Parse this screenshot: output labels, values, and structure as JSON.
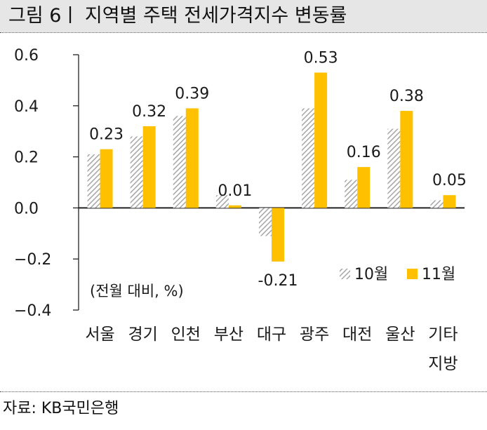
{
  "title": "그림 6ㅣ 지역별 주택 전세가격지수 변동률",
  "source": "자료: KB국민은행",
  "colors": {
    "series_10": "#b8b8b8",
    "series_11": "#ffc000",
    "axis": "#222222"
  },
  "chart_data": {
    "type": "bar",
    "categories": [
      "서울",
      "경기",
      "인천",
      "부산",
      "대구",
      "광주",
      "대전",
      "울산",
      "기타 지방"
    ],
    "category_lines": [
      [
        "서울"
      ],
      [
        "경기"
      ],
      [
        "인천"
      ],
      [
        "부산"
      ],
      [
        "대구"
      ],
      [
        "광주"
      ],
      [
        "대전"
      ],
      [
        "울산"
      ],
      [
        "기타",
        "지방"
      ]
    ],
    "series": [
      {
        "name": "10월",
        "values": [
          0.21,
          0.28,
          0.36,
          0.05,
          -0.11,
          0.39,
          0.11,
          0.31,
          0.03
        ],
        "pattern": "hatch"
      },
      {
        "name": "11월",
        "values": [
          0.23,
          0.32,
          0.39,
          0.01,
          -0.21,
          0.53,
          0.16,
          0.38,
          0.05
        ],
        "pattern": "solid"
      }
    ],
    "data_labels": [
      "0.23",
      "0.32",
      "0.39",
      "0.01",
      "-0.21",
      "0.53",
      "0.16",
      "0.38",
      "0.05"
    ],
    "ylim": [
      -0.4,
      0.6
    ],
    "yticks": [
      0.6,
      0.4,
      0.2,
      0.0,
      -0.2,
      -0.4
    ],
    "ytick_labels": [
      "0.6",
      "0.4",
      "0.2",
      "0.0",
      "−0.2",
      "−0.4"
    ],
    "annotation": "(전월 대비, %)",
    "legend_position": "bottom-right",
    "grid": false
  }
}
